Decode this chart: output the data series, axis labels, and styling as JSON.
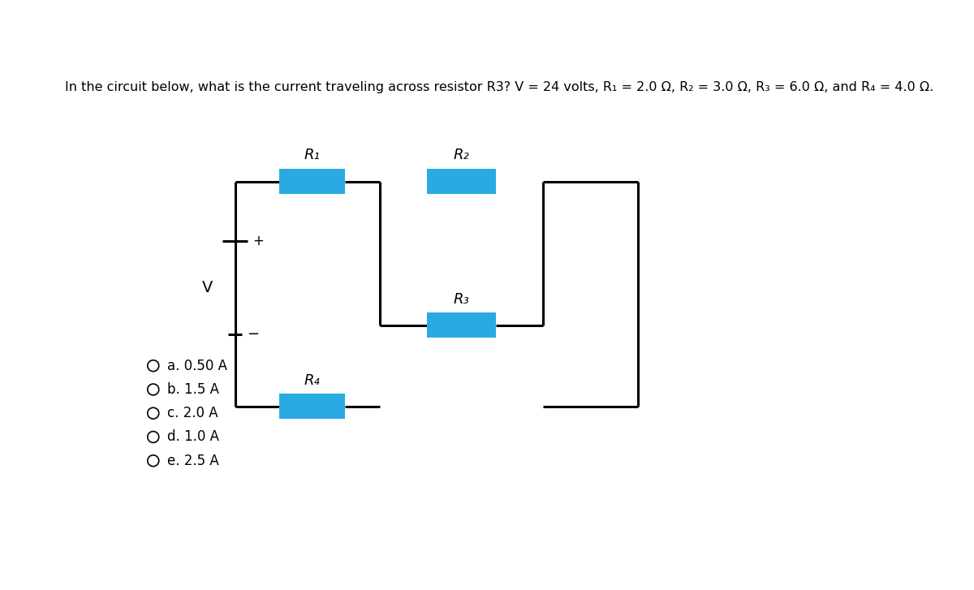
{
  "title": "In the circuit below, what is the current traveling across resistor R3? V = 24 volts, R₁ = 2.0 Ω, R₂ = 3.0 Ω, R₃ = 6.0 Ω, and R₄ = 4.0 Ω.",
  "title_fontsize": 11.5,
  "background_color": "#ffffff",
  "resistor_color": "#29ABE2",
  "wire_color": "#000000",
  "wire_lw": 2.2,
  "choices": [
    "a. 0.50 A",
    "b. 1.5 A",
    "c. 2.0 A",
    "d. 1.0 A",
    "e. 2.5 A"
  ],
  "choice_fontsize": 12,
  "label_fontsize": 13,
  "resistor_labels": [
    "R₁",
    "R₂",
    "R₃",
    "R₄"
  ],
  "voltage_label": "V",
  "plus_label": "+",
  "minus_label": "−"
}
